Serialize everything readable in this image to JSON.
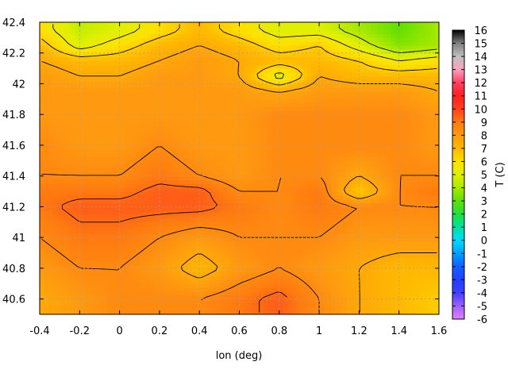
{
  "chart_data": {
    "type": "heatmap",
    "title": "",
    "xlabel": "lon (deg)",
    "ylabel": "",
    "colorbar_label": "T (C)",
    "xlim": [
      -0.4,
      1.6
    ],
    "ylim": [
      40.5,
      42.4
    ],
    "x_ticks": [
      "-0.4",
      "-0.2",
      "0",
      "0.2",
      "0.4",
      "0.6",
      "0.8",
      "1",
      "1.2",
      "1.4",
      "1.6"
    ],
    "y_ticks": [
      "40.6",
      "40.8",
      "41",
      "41.2",
      "41.4",
      "41.6",
      "41.8",
      "42",
      "42.2",
      "42.4"
    ],
    "colorbar_range": [
      -6,
      16
    ],
    "colorbar_ticks": [
      "-6",
      "-5",
      "-4",
      "-3",
      "-2",
      "-1",
      "0",
      "1",
      "2",
      "3",
      "4",
      "5",
      "6",
      "7",
      "8",
      "9",
      "10",
      "11",
      "12",
      "13",
      "14",
      "15",
      "16"
    ],
    "colorbar_stops": [
      {
        "v": -6,
        "color": "#e080ff"
      },
      {
        "v": -5,
        "color": "#a060ff"
      },
      {
        "v": -4,
        "color": "#4040ff"
      },
      {
        "v": -3,
        "color": "#2040ff"
      },
      {
        "v": -2,
        "color": "#1060ff"
      },
      {
        "v": -1,
        "color": "#00a0ff"
      },
      {
        "v": 0,
        "color": "#00d8ff"
      },
      {
        "v": 1,
        "color": "#00e0a0"
      },
      {
        "v": 2,
        "color": "#20e040"
      },
      {
        "v": 3,
        "color": "#60e000"
      },
      {
        "v": 4,
        "color": "#a8e800"
      },
      {
        "v": 5,
        "color": "#e0f000"
      },
      {
        "v": 6,
        "color": "#ffe000"
      },
      {
        "v": 7,
        "color": "#ffb800"
      },
      {
        "v": 8,
        "color": "#ff9a10"
      },
      {
        "v": 9,
        "color": "#ff7a10"
      },
      {
        "v": 10,
        "color": "#ff4020"
      },
      {
        "v": 11,
        "color": "#ff2020"
      },
      {
        "v": 12,
        "color": "#ff4060"
      },
      {
        "v": 13,
        "color": "#ffa0c0"
      },
      {
        "v": 14,
        "color": "#c0c0c0"
      },
      {
        "v": 15,
        "color": "#808080"
      },
      {
        "v": 16,
        "color": "#000000"
      }
    ],
    "grid": true,
    "contour_color": "#000000",
    "field_summary": {
      "lat_rows": [
        42.35,
        42.25,
        42.15,
        42.05,
        41.95,
        41.8,
        41.6,
        41.4,
        41.3,
        41.2,
        41.0,
        40.8,
        40.6
      ],
      "lon_cols": [
        -0.4,
        -0.2,
        0,
        0.2,
        0.4,
        0.6,
        0.8,
        1.0,
        1.2,
        1.4,
        1.6
      ],
      "values": [
        [
          6,
          4.5,
          5,
          6,
          7,
          6,
          5,
          5,
          4,
          3,
          4
        ],
        [
          7,
          5,
          6,
          7,
          7.5,
          7,
          6,
          6.5,
          5,
          3.5,
          4
        ],
        [
          7.5,
          7,
          7,
          7.5,
          8,
          7.5,
          7,
          7,
          6.5,
          5.5,
          6
        ],
        [
          8,
          7.5,
          7.5,
          8,
          8,
          7.5,
          5,
          7.5,
          7,
          7,
          7
        ],
        [
          8,
          8,
          8,
          8,
          8,
          8,
          7.5,
          8,
          8,
          8,
          7.5
        ],
        [
          8,
          8,
          8,
          8,
          8,
          8,
          8.5,
          8.5,
          8.5,
          8.5,
          8
        ],
        [
          8.5,
          8,
          8,
          8.5,
          8,
          8,
          8.5,
          8.5,
          8.5,
          8.5,
          8
        ],
        [
          8.5,
          8.5,
          8.5,
          9,
          8.5,
          8,
          8.5,
          8.5,
          7.5,
          8.5,
          8.5
        ],
        [
          9,
          9,
          9,
          9.5,
          9.5,
          8.5,
          8.5,
          9,
          6.5,
          8.5,
          9
        ],
        [
          9,
          9.5,
          9.5,
          9.5,
          9.5,
          9,
          8.5,
          9,
          8.5,
          8.5,
          8.5
        ],
        [
          8.5,
          9,
          9,
          8.5,
          8,
          8.5,
          8.5,
          8.5,
          8,
          8,
          8
        ],
        [
          8,
          8.5,
          8.5,
          8,
          7,
          8,
          8.5,
          8,
          7.5,
          7,
          7
        ],
        [
          7.5,
          8,
          8.5,
          8.5,
          8.5,
          9,
          9.5,
          8.5,
          7.5,
          7,
          6.5
        ]
      ]
    }
  }
}
